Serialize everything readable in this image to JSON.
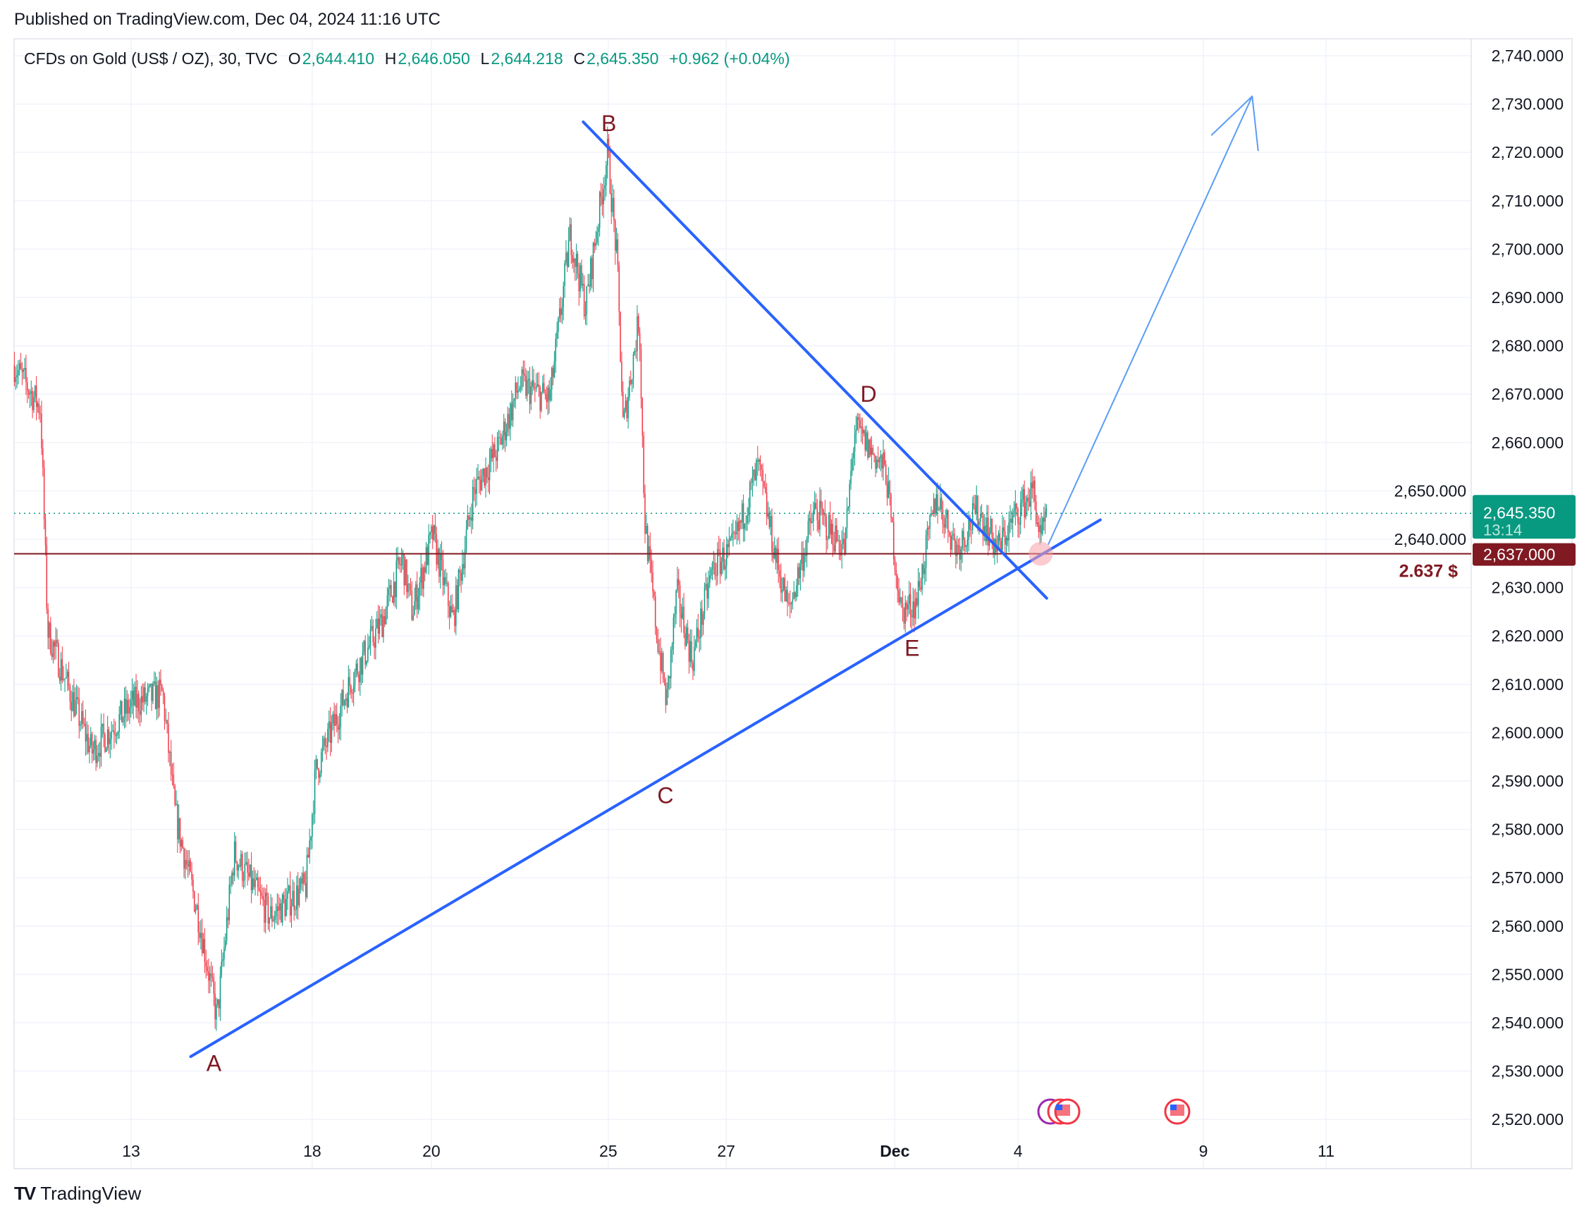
{
  "header": {
    "published": "Published on TradingView.com, Dec 04, 2024 11:16 UTC"
  },
  "legend": {
    "symbol": "CFDs on Gold (US$ / OZ), 30, TVC",
    "o_label": "O",
    "o": "2,644.410",
    "h_label": "H",
    "h": "2,646.050",
    "l_label": "L",
    "l": "2,644.218",
    "c_label": "C",
    "c": "2,645.350",
    "change": "+0.962 (+0.04%)"
  },
  "price_axis": {
    "ticks": [
      "2,520.000",
      "2,530.000",
      "2,540.000",
      "2,550.000",
      "2,560.000",
      "2,570.000",
      "2,580.000",
      "2,590.000",
      "2,600.000",
      "2,610.000",
      "2,620.000",
      "2,630.000",
      "2,640.000",
      "2,650.000",
      "2,660.000",
      "2,670.000",
      "2,680.000",
      "2,690.000",
      "2,700.000",
      "2,710.000",
      "2,720.000",
      "2,730.000",
      "2,740.000"
    ],
    "last_price": "2,645.350",
    "countdown": "13:14",
    "level_price": "2,637.000",
    "level_label": "2.637 $"
  },
  "time_axis": {
    "ticks": [
      {
        "label": "13",
        "t": 0
      },
      {
        "label": "18",
        "t": 3.04
      },
      {
        "label": "20",
        "t": 5.04
      },
      {
        "label": "25",
        "t": 8.01
      },
      {
        "label": "27",
        "t": 9.99
      },
      {
        "label": "Dec",
        "t": 12.82,
        "bold": true
      },
      {
        "label": "4",
        "t": 14.89
      },
      {
        "label": "9",
        "t": 18.0
      },
      {
        "label": "11",
        "t": 20.06
      }
    ]
  },
  "colors": {
    "up": "#089981",
    "down": "#f23645",
    "trend": "#2962ff",
    "arrow": "#5b9cf6",
    "level": "#801922",
    "last": "#089981"
  },
  "chart_data": {
    "type": "candlestick",
    "symbol": "XAUUSD 30m",
    "ylim": [
      2515,
      2745
    ],
    "time_unit": "trading days from Nov 13",
    "price_path": [
      [
        -1.96,
        2676
      ],
      [
        -1.52,
        2667
      ],
      [
        -1.4,
        2621
      ],
      [
        -0.66,
        2596
      ],
      [
        0.02,
        2606
      ],
      [
        0.53,
        2608
      ],
      [
        0.74,
        2583
      ],
      [
        1.13,
        2562
      ],
      [
        1.44,
        2541
      ],
      [
        1.73,
        2575
      ],
      [
        2.33,
        2562
      ],
      [
        2.93,
        2568
      ],
      [
        3.1,
        2592
      ],
      [
        3.7,
        2611
      ],
      [
        4.21,
        2623
      ],
      [
        4.55,
        2636
      ],
      [
        4.72,
        2625
      ],
      [
        5.06,
        2641
      ],
      [
        5.4,
        2623
      ],
      [
        5.75,
        2650
      ],
      [
        6.17,
        2659
      ],
      [
        6.52,
        2672
      ],
      [
        7.03,
        2669
      ],
      [
        7.37,
        2703
      ],
      [
        7.63,
        2688
      ],
      [
        8.0,
        2720
      ],
      [
        8.16,
        2697
      ],
      [
        8.26,
        2663
      ],
      [
        8.53,
        2686
      ],
      [
        8.62,
        2644
      ],
      [
        8.82,
        2621
      ],
      [
        8.99,
        2606
      ],
      [
        9.16,
        2629
      ],
      [
        9.42,
        2615
      ],
      [
        9.76,
        2634
      ],
      [
        10.1,
        2638
      ],
      [
        10.53,
        2655
      ],
      [
        10.79,
        2638
      ],
      [
        11.04,
        2625
      ],
      [
        11.47,
        2646
      ],
      [
        11.98,
        2638
      ],
      [
        12.15,
        2663
      ],
      [
        12.67,
        2654
      ],
      [
        12.92,
        2625
      ],
      [
        13.18,
        2627
      ],
      [
        13.52,
        2649
      ],
      [
        13.86,
        2638
      ],
      [
        14.21,
        2646
      ],
      [
        14.55,
        2638
      ],
      [
        14.89,
        2646
      ],
      [
        15.15,
        2650
      ],
      [
        15.27,
        2639
      ],
      [
        15.37,
        2645.35
      ]
    ],
    "drawings": {
      "support_line": [
        [
          1.0,
          2533
        ],
        [
          16.27,
          2644
        ]
      ],
      "resistance_line": [
        [
          7.59,
          2726.3
        ],
        [
          15.37,
          2627.8
        ]
      ],
      "arrow": {
        "from": [
          15.4,
          2639
        ],
        "to": [
          18.82,
          2731.6
        ],
        "head_a": [
          18.14,
          2723.6
        ],
        "head_b": [
          18.92,
          2720.4
        ]
      },
      "labels": [
        {
          "text": "A",
          "t": 1.39,
          "p": 2531.6
        },
        {
          "text": "B",
          "t": 8.02,
          "p": 2726
        },
        {
          "text": "C",
          "t": 8.97,
          "p": 2587
        },
        {
          "text": "D",
          "t": 12.38,
          "p": 2670
        },
        {
          "text": "E",
          "t": 13.11,
          "p": 2617.5
        }
      ],
      "marker": {
        "t": 15.27,
        "p": 2637
      }
    }
  },
  "footer": {
    "brand": "TradingView",
    "logo": "TV"
  }
}
